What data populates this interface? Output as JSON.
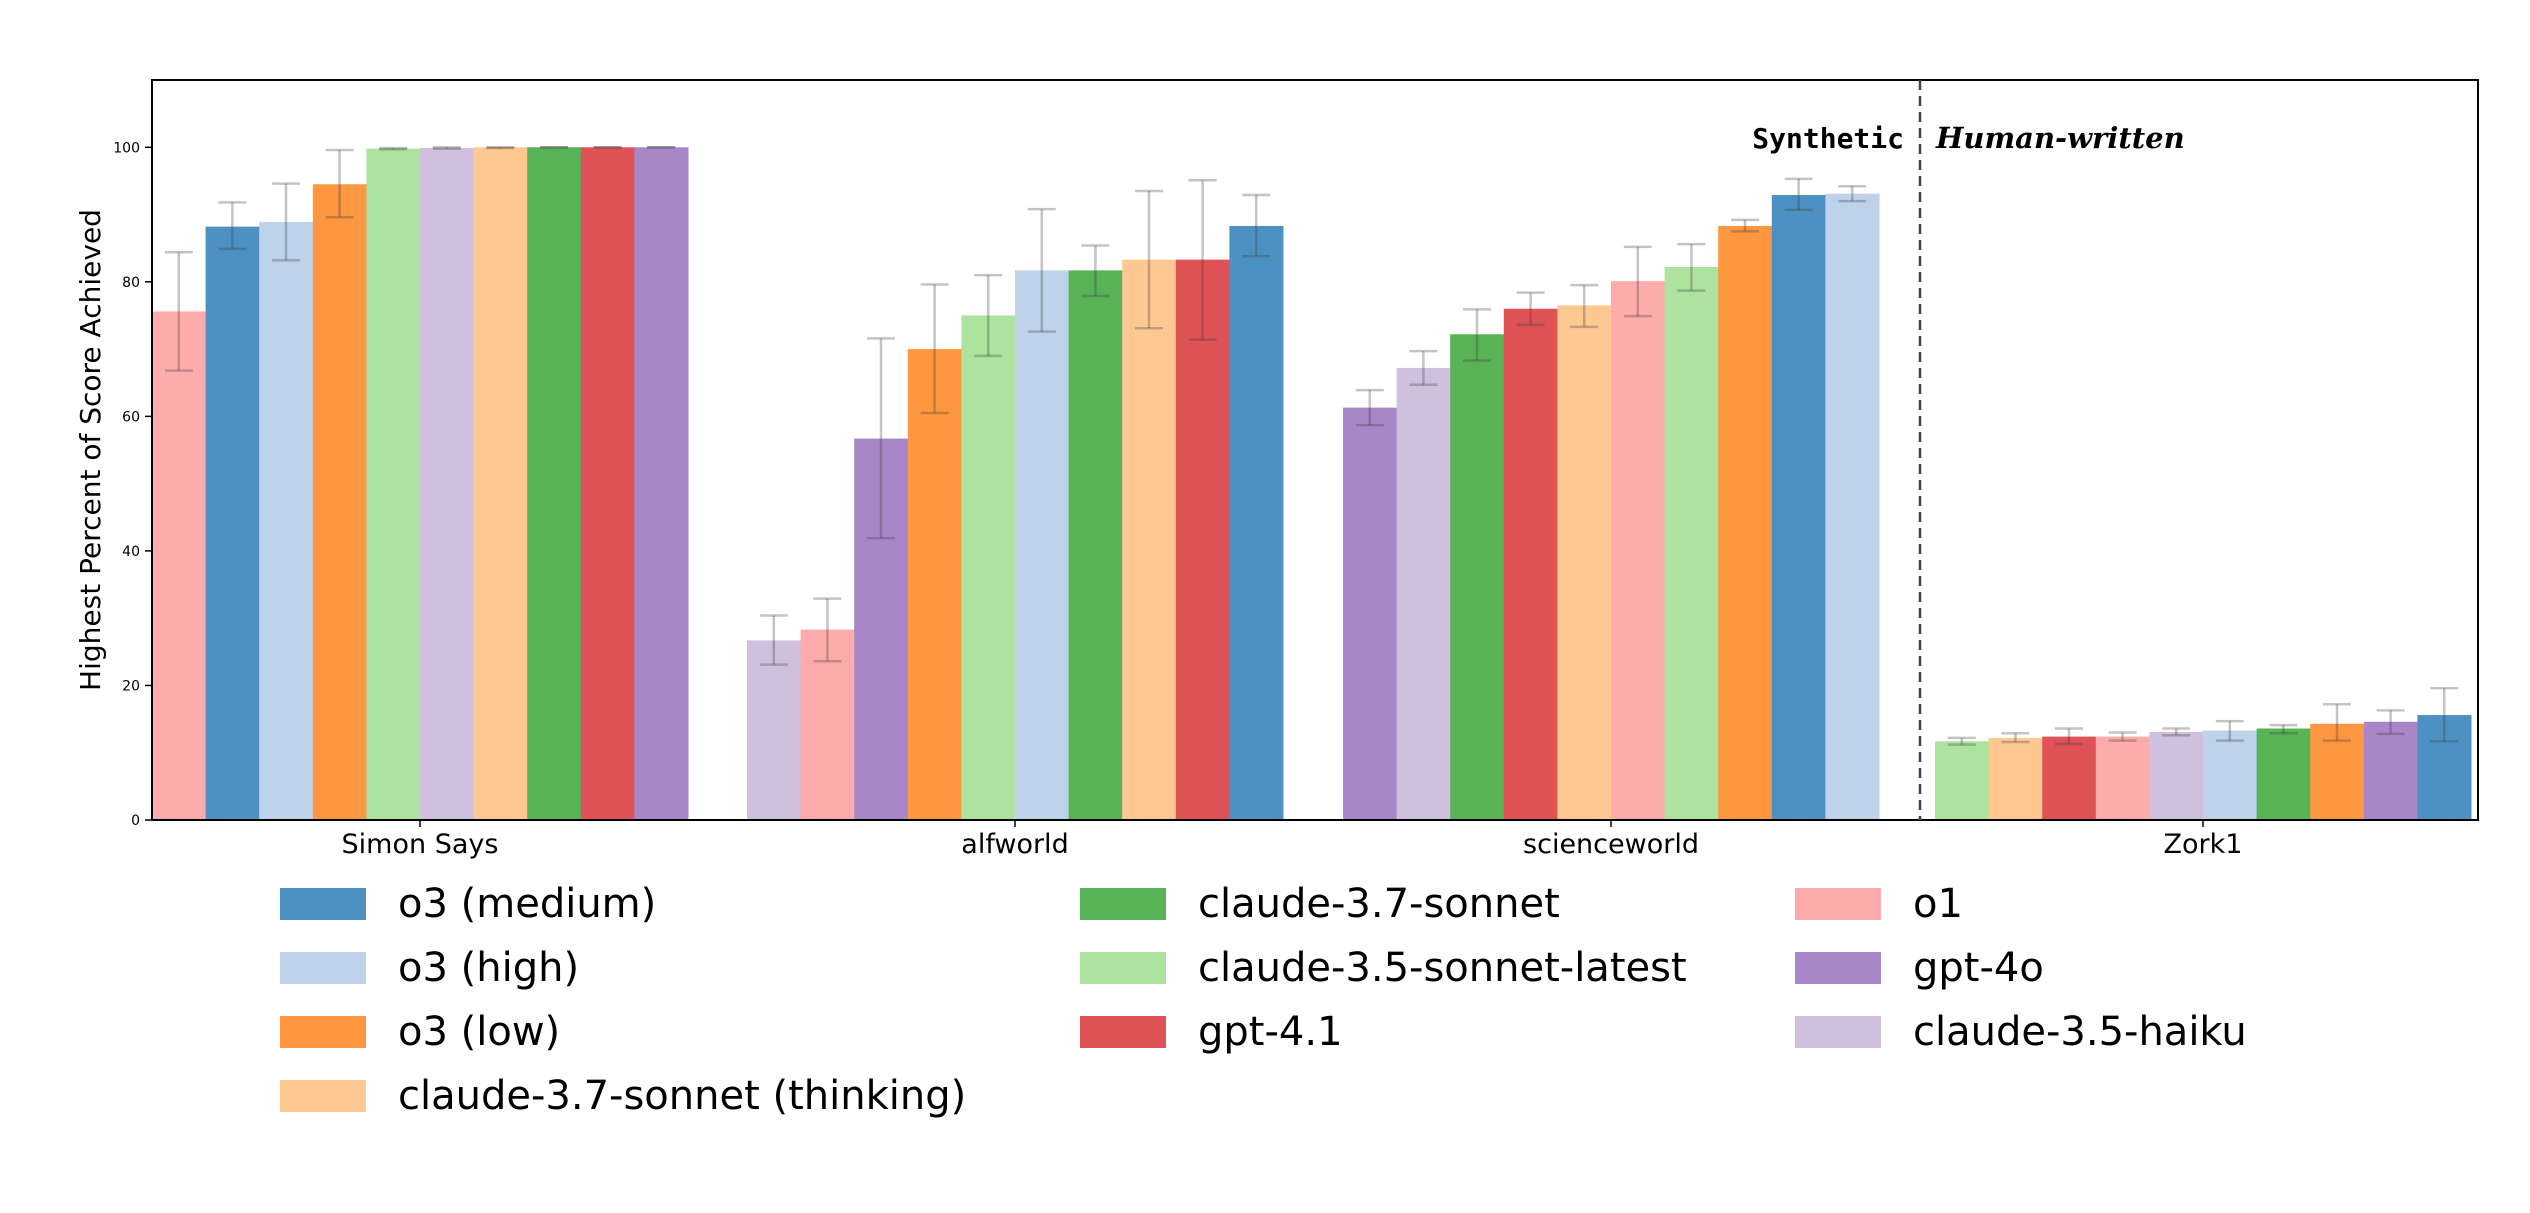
{
  "chart_data": {
    "type": "bar",
    "title": "",
    "xlabel": "",
    "ylabel": "Highest Percent of Score Achieved",
    "ylim": [
      0,
      110
    ],
    "yticks": [
      0,
      20,
      40,
      60,
      80,
      100
    ],
    "grid": false,
    "divider_labels": {
      "left": "Synthetic",
      "right": "Human-written"
    },
    "groups": [
      {
        "name": "Simon Says",
        "bars": [
          {
            "model": "o1",
            "value": 75.6,
            "err": [
              66.8,
              84.4
            ]
          },
          {
            "model": "o3 (medium)",
            "value": 88.2,
            "err": [
              84.9,
              91.8
            ]
          },
          {
            "model": "o3 (high)",
            "value": 88.9,
            "err": [
              83.2,
              94.6
            ]
          },
          {
            "model": "o3 (low)",
            "value": 94.5,
            "err": [
              89.6,
              99.6
            ]
          },
          {
            "model": "claude-3.5-sonnet-latest",
            "value": 99.8,
            "err": [
              99.7,
              99.9
            ]
          },
          {
            "model": "claude-3.5-haiku",
            "value": 99.9,
            "err": [
              99.8,
              100
            ]
          },
          {
            "model": "claude-3.7-sonnet (thinking)",
            "value": 100,
            "err": [
              99.9,
              100
            ]
          },
          {
            "model": "claude-3.7-sonnet",
            "value": 100,
            "err": [
              100,
              100
            ]
          },
          {
            "model": "gpt-4.1",
            "value": 100,
            "err": [
              100,
              100
            ]
          },
          {
            "model": "gpt-4o",
            "value": 100,
            "err": [
              100,
              100
            ]
          }
        ]
      },
      {
        "name": "alfworld",
        "bars": [
          {
            "model": "claude-3.5-haiku",
            "value": 26.7,
            "err": [
              23.1,
              30.4
            ]
          },
          {
            "model": "o1",
            "value": 28.3,
            "err": [
              23.6,
              32.9
            ]
          },
          {
            "model": "gpt-4o",
            "value": 56.7,
            "err": [
              41.9,
              71.6
            ]
          },
          {
            "model": "o3 (low)",
            "value": 70.0,
            "err": [
              60.5,
              79.6
            ]
          },
          {
            "model": "claude-3.5-sonnet-latest",
            "value": 75.0,
            "err": [
              69.0,
              81.0
            ]
          },
          {
            "model": "o3 (high)",
            "value": 81.7,
            "err": [
              72.6,
              90.8
            ]
          },
          {
            "model": "claude-3.7-sonnet",
            "value": 81.7,
            "err": [
              77.9,
              85.4
            ]
          },
          {
            "model": "claude-3.7-sonnet (thinking)",
            "value": 83.3,
            "err": [
              73.1,
              93.5
            ]
          },
          {
            "model": "gpt-4.1",
            "value": 83.3,
            "err": [
              71.4,
              95.1
            ]
          },
          {
            "model": "o3 (medium)",
            "value": 88.3,
            "err": [
              83.8,
              92.9
            ]
          }
        ]
      },
      {
        "name": "scienceworld",
        "bars": [
          {
            "model": "gpt-4o",
            "value": 61.3,
            "err": [
              58.7,
              63.9
            ]
          },
          {
            "model": "claude-3.5-haiku",
            "value": 67.2,
            "err": [
              64.7,
              69.7
            ]
          },
          {
            "model": "claude-3.7-sonnet",
            "value": 72.2,
            "err": [
              68.3,
              75.9
            ]
          },
          {
            "model": "gpt-4.1",
            "value": 76.0,
            "err": [
              73.6,
              78.4
            ]
          },
          {
            "model": "claude-3.7-sonnet (thinking)",
            "value": 76.5,
            "err": [
              73.3,
              79.5
            ]
          },
          {
            "model": "o1",
            "value": 80.1,
            "err": [
              74.9,
              85.2
            ]
          },
          {
            "model": "claude-3.5-sonnet-latest",
            "value": 82.2,
            "err": [
              78.7,
              85.6
            ]
          },
          {
            "model": "o3 (low)",
            "value": 88.3,
            "err": [
              87.5,
              89.2
            ]
          },
          {
            "model": "o3 (medium)",
            "value": 92.9,
            "err": [
              90.7,
              95.3
            ]
          },
          {
            "model": "o3 (high)",
            "value": 93.1,
            "err": [
              92.0,
              94.2
            ]
          }
        ]
      },
      {
        "name": "Zork1",
        "bars": [
          {
            "model": "claude-3.5-sonnet-latest",
            "value": 11.7,
            "err": [
              11.2,
              12.2
            ]
          },
          {
            "model": "claude-3.7-sonnet (thinking)",
            "value": 12.2,
            "err": [
              11.6,
              12.9
            ]
          },
          {
            "model": "gpt-4.1",
            "value": 12.4,
            "err": [
              11.3,
              13.6
            ]
          },
          {
            "model": "o1",
            "value": 12.4,
            "err": [
              11.8,
              13.0
            ]
          },
          {
            "model": "claude-3.5-haiku",
            "value": 13.1,
            "err": [
              12.6,
              13.6
            ]
          },
          {
            "model": "o3 (high)",
            "value": 13.3,
            "err": [
              11.8,
              14.7
            ]
          },
          {
            "model": "claude-3.7-sonnet",
            "value": 13.6,
            "err": [
              12.9,
              14.1
            ]
          },
          {
            "model": "o3 (low)",
            "value": 14.3,
            "err": [
              11.8,
              17.2
            ]
          },
          {
            "model": "gpt-4o",
            "value": 14.6,
            "err": [
              12.8,
              16.3
            ]
          },
          {
            "model": "o3 (medium)",
            "value": 15.6,
            "err": [
              11.7,
              19.6
            ]
          }
        ]
      }
    ],
    "legend": {
      "placement": "bottom",
      "entries": [
        {
          "label": "o3 (medium)",
          "color": "#4c91c2"
        },
        {
          "label": "o3 (high)",
          "color": "#bed2ea"
        },
        {
          "label": "o3 (low)",
          "color": "#fe973f"
        },
        {
          "label": "claude-3.7-sonnet (thinking)",
          "color": "#fec893"
        },
        {
          "label": "claude-3.7-sonnet",
          "color": "#57b356"
        },
        {
          "label": "claude-3.5-sonnet-latest",
          "color": "#ade39e"
        },
        {
          "label": "gpt-4.1",
          "color": "#df5256"
        },
        {
          "label": "o1",
          "color": "#feabab"
        },
        {
          "label": "gpt-4o",
          "color": "#a887c8"
        },
        {
          "label": "claude-3.5-haiku",
          "color": "#d0bfdd"
        }
      ]
    }
  }
}
